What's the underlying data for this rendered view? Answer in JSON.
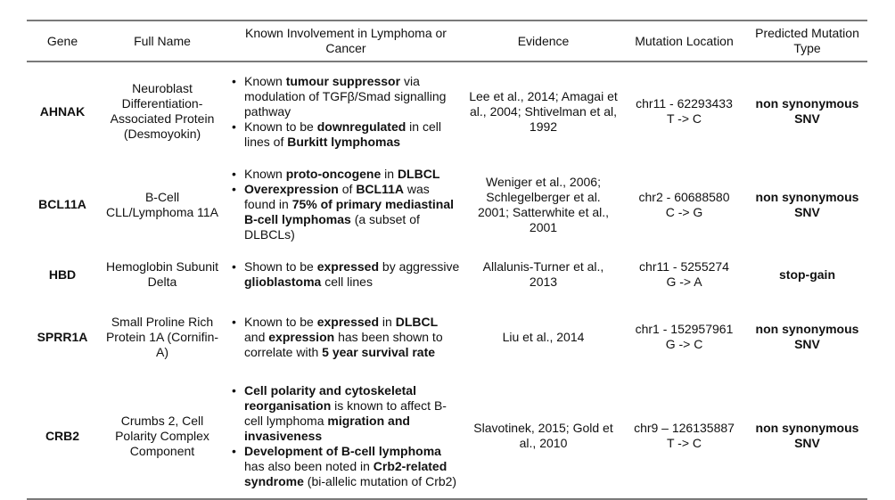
{
  "headers": {
    "gene": "Gene",
    "full_name": "Full Name",
    "involvement": "Known Involvement in Lymphoma or Cancer",
    "evidence": "Evidence",
    "location": "Mutation Location",
    "type": "Predicted Mutation Type"
  },
  "rows": [
    {
      "gene": "AHNAK",
      "full_name": "Neuroblast Differentiation-Associated Protein (Desmoyokin)",
      "involvement": [
        [
          {
            "t": "Known "
          },
          {
            "t": "tumour suppressor",
            "b": true
          },
          {
            "t": " via modulation of TGFβ/Smad signalling pathway"
          }
        ],
        [
          {
            "t": "Known to be "
          },
          {
            "t": "downregulated",
            "b": true
          },
          {
            "t": " in cell lines of "
          },
          {
            "t": "Burkitt lymphomas",
            "b": true
          }
        ]
      ],
      "evidence": "Lee et al., 2014; Amagai et al., 2004; Shtivelman et al, 1992",
      "location_line1": "chr11 - 62293433",
      "location_line2": "T -> C",
      "type": "non synonymous SNV"
    },
    {
      "gene": "BCL11A",
      "full_name": "B-Cell CLL/Lymphoma 11A",
      "involvement": [
        [
          {
            "t": "Known "
          },
          {
            "t": "proto-oncogene",
            "b": true
          },
          {
            "t": " in "
          },
          {
            "t": "DLBCL",
            "b": true
          }
        ],
        [
          {
            "t": "Overexpression",
            "b": true
          },
          {
            "t": " of "
          },
          {
            "t": "BCL11A",
            "b": true
          },
          {
            "t": " was found in "
          },
          {
            "t": "75% of primary mediastinal B-cell lymphomas",
            "b": true
          },
          {
            "t": "  (a subset of DLBCLs)"
          }
        ]
      ],
      "evidence": "Weniger et al., 2006; Schlegelberger et al. 2001; Satterwhite et al., 2001",
      "location_line1": "chr2 - 60688580",
      "location_line2": "C -> G",
      "type": "non synonymous SNV"
    },
    {
      "gene": "HBD",
      "full_name": "Hemoglobin Subunit Delta",
      "involvement": [
        [
          {
            "t": "Shown to be "
          },
          {
            "t": "expressed",
            "b": true
          },
          {
            "t": " by aggressive "
          },
          {
            "t": "glioblastoma",
            "b": true
          },
          {
            "t": " cell lines"
          }
        ]
      ],
      "evidence": "Allalunis-Turner et al., 2013",
      "location_line1": "chr11 - 5255274",
      "location_line2": "G -> A",
      "type": "stop-gain"
    },
    {
      "gene": "SPRR1A",
      "full_name": "Small Proline Rich Protein 1A (Cornifin-A)",
      "involvement": [
        [
          {
            "t": "Known to be "
          },
          {
            "t": "expressed",
            "b": true
          },
          {
            "t": " in "
          },
          {
            "t": "DLBCL",
            "b": true
          },
          {
            "t": " and "
          },
          {
            "t": "expression",
            "b": true
          },
          {
            "t": " has been shown to correlate with "
          },
          {
            "t": "5 year survival rate",
            "b": true
          }
        ]
      ],
      "evidence": "Liu et al., 2014",
      "location_line1": "chr1 - 152957961",
      "location_line2": "G -> C",
      "type": "non synonymous SNV"
    },
    {
      "gene": "CRB2",
      "full_name": "Crumbs 2, Cell Polarity Complex Component",
      "involvement": [
        [
          {
            "t": "Cell polarity and cytoskeletal reorganisation",
            "b": true
          },
          {
            "t": " is known to affect B-cell lymphoma "
          },
          {
            "t": "migration and invasiveness",
            "b": true
          }
        ],
        [
          {
            "t": "Development of B-cell lymphoma",
            "b": true
          },
          {
            "t": " has also been noted in "
          },
          {
            "t": "Crb2-related syndrome",
            "b": true
          },
          {
            "t": " (bi-allelic mutation of Crb2)"
          }
        ]
      ],
      "evidence": "Slavotinek, 2015; Gold et al., 2010",
      "location_line1": "chr9 – 126135887",
      "location_line2": "T -> C",
      "type": "non synonymous SNV"
    }
  ]
}
